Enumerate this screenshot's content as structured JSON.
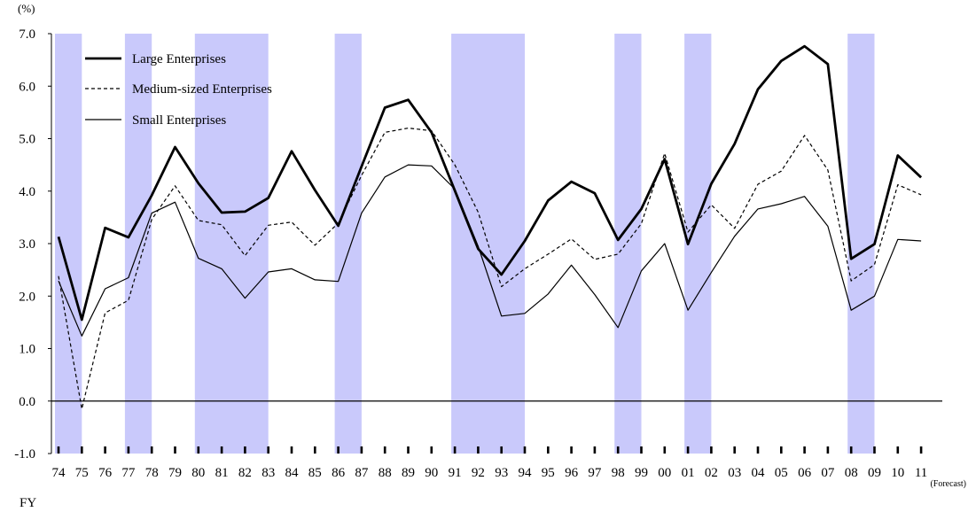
{
  "chart_data": {
    "type": "line",
    "ylabel": "(%)",
    "xlabel": "FY",
    "forecast_note": "(Forecast)",
    "ylim": [
      -1.0,
      7.0
    ],
    "yticks": [
      "7.0",
      "6.0",
      "5.0",
      "4.0",
      "3.0",
      "2.0",
      "1.0",
      "0.0",
      "-1.0"
    ],
    "categories": [
      "74",
      "75",
      "76",
      "77",
      "78",
      "79",
      "80",
      "81",
      "82",
      "83",
      "84",
      "85",
      "86",
      "87",
      "88",
      "89",
      "90",
      "91",
      "92",
      "93",
      "94",
      "95",
      "96",
      "97",
      "98",
      "99",
      "00",
      "01",
      "02",
      "03",
      "04",
      "05",
      "06",
      "07",
      "08",
      "09",
      "10",
      "11"
    ],
    "series": [
      {
        "name": "Large Enterprises",
        "style": "thick",
        "values": [
          3.13,
          1.55,
          3.3,
          3.12,
          3.92,
          4.84,
          4.15,
          3.59,
          3.61,
          3.87,
          4.76,
          4.02,
          3.34,
          4.47,
          5.59,
          5.74,
          5.12,
          4.01,
          2.9,
          2.41,
          3.05,
          3.82,
          4.18,
          3.96,
          3.07,
          3.66,
          4.61,
          2.99,
          4.14,
          4.9,
          5.94,
          6.48,
          6.76,
          6.42,
          2.71,
          2.99,
          4.68,
          4.26
        ]
      },
      {
        "name": "Medium-sized Enterprises",
        "style": "dashed",
        "values": [
          2.38,
          -0.15,
          1.68,
          1.92,
          3.46,
          4.1,
          3.44,
          3.36,
          2.77,
          3.35,
          3.41,
          2.97,
          3.39,
          4.3,
          5.12,
          5.2,
          5.15,
          4.5,
          3.6,
          2.18,
          2.52,
          2.8,
          3.09,
          2.7,
          2.8,
          3.38,
          4.72,
          3.22,
          3.74,
          3.29,
          4.13,
          4.38,
          5.06,
          4.4,
          2.29,
          2.6,
          4.12,
          3.93
        ]
      },
      {
        "name": "Small Enterprises",
        "style": "thin",
        "values": [
          2.29,
          1.24,
          2.14,
          2.35,
          3.58,
          3.79,
          2.72,
          2.52,
          1.96,
          2.46,
          2.52,
          2.31,
          2.28,
          3.58,
          4.27,
          4.5,
          4.48,
          4.04,
          2.95,
          1.62,
          1.67,
          2.04,
          2.59,
          2.03,
          1.4,
          2.48,
          3.0,
          1.73,
          2.45,
          3.14,
          3.66,
          3.76,
          3.9,
          3.33,
          1.73,
          2.0,
          3.08,
          3.05
        ]
      }
    ],
    "shaded_periods": [
      [
        "74",
        "75"
      ],
      [
        "77",
        "78"
      ],
      [
        "80",
        "83"
      ],
      [
        "86",
        "87"
      ],
      [
        "91",
        "94"
      ],
      [
        "98",
        "99"
      ],
      [
        "01",
        "02"
      ],
      [
        "08",
        "09"
      ]
    ],
    "grid": false,
    "legend": "top-left",
    "colors": {
      "shade": "#c9c9fb",
      "line": "#000000"
    }
  }
}
